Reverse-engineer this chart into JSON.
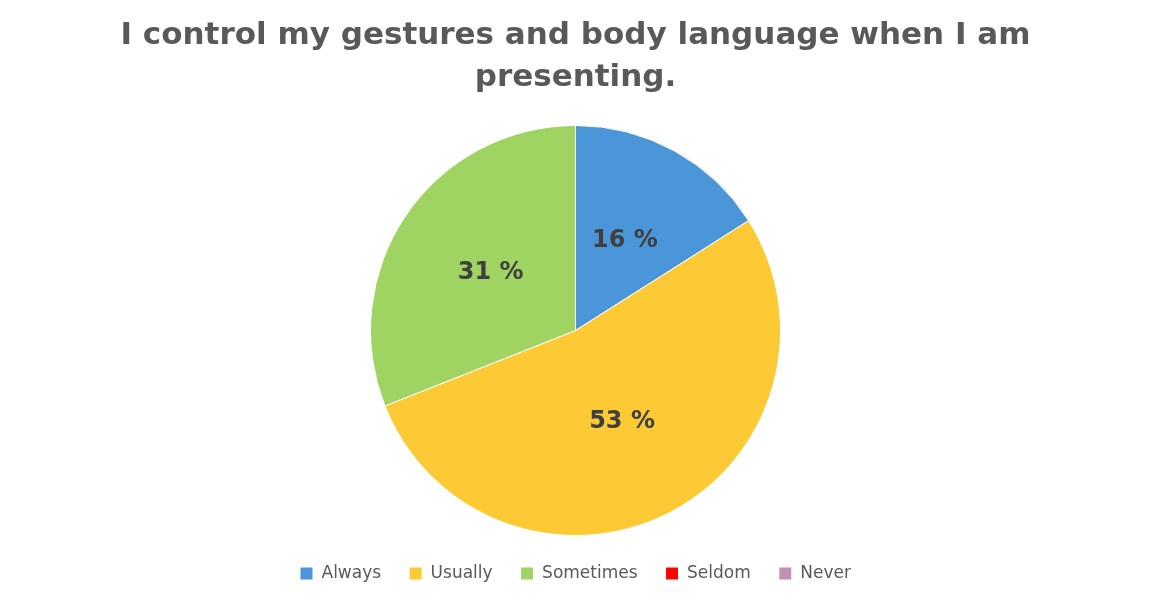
{
  "chart_data": {
    "type": "pie",
    "title": "I control my gestures and body language when I am presenting.",
    "categories": [
      "Always",
      "Usually",
      "Sometimes",
      "Seldom",
      "Never"
    ],
    "values": [
      16,
      53,
      31,
      0,
      0
    ],
    "colors": [
      "#4a96d8",
      "#fdc935",
      "#9fd463",
      "#ff0000",
      "#c48fb4"
    ],
    "value_labels": [
      "16 %",
      "53 %",
      "31 %",
      null,
      null
    ],
    "legend": "bottom"
  }
}
